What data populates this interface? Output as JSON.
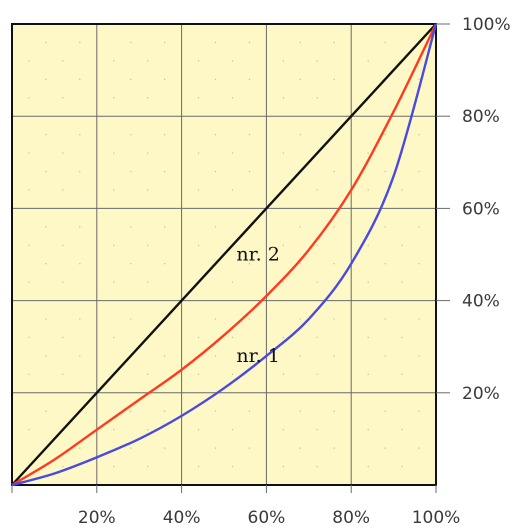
{
  "chart_data": {
    "type": "line",
    "title": "",
    "xlabel": "",
    "ylabel": "",
    "xlim": [
      0,
      100
    ],
    "ylim": [
      0,
      100
    ],
    "grid": true,
    "x_ticks": [
      {
        "value": 20,
        "label": "20%"
      },
      {
        "value": 40,
        "label": "40%"
      },
      {
        "value": 60,
        "label": "60%"
      },
      {
        "value": 80,
        "label": "80%"
      },
      {
        "value": 100,
        "label": "100%"
      }
    ],
    "y_ticks": [
      {
        "value": 20,
        "label": "20%"
      },
      {
        "value": 40,
        "label": "40%"
      },
      {
        "value": 60,
        "label": "60%"
      },
      {
        "value": 80,
        "label": "80%"
      },
      {
        "value": 100,
        "label": "100%"
      }
    ],
    "series": [
      {
        "color": "#111111",
        "x": [
          0,
          100
        ],
        "y": [
          0,
          100
        ]
      },
      {
        "color": "#ff3b1f",
        "x": [
          0,
          10,
          20,
          30,
          40,
          50,
          60,
          70,
          80,
          90,
          100
        ],
        "y": [
          0,
          5.5,
          12,
          18.5,
          25,
          32.5,
          41,
          51,
          64,
          81,
          100
        ]
      },
      {
        "color": "#4a4ae0",
        "x": [
          0,
          10,
          20,
          30,
          40,
          50,
          60,
          70,
          80,
          90,
          100
        ],
        "y": [
          0,
          2.5,
          6,
          10,
          15,
          21,
          28,
          36,
          48,
          67,
          100
        ]
      }
    ],
    "annotations": [
      {
        "text": "nr. 2",
        "x": 60,
        "y": 50
      },
      {
        "text": "nr. 1",
        "x": 60,
        "y": 28
      }
    ],
    "colors": {
      "plot_background": "#fdf8c6",
      "grid": "#6a6a6a",
      "frame": "#111111"
    }
  }
}
